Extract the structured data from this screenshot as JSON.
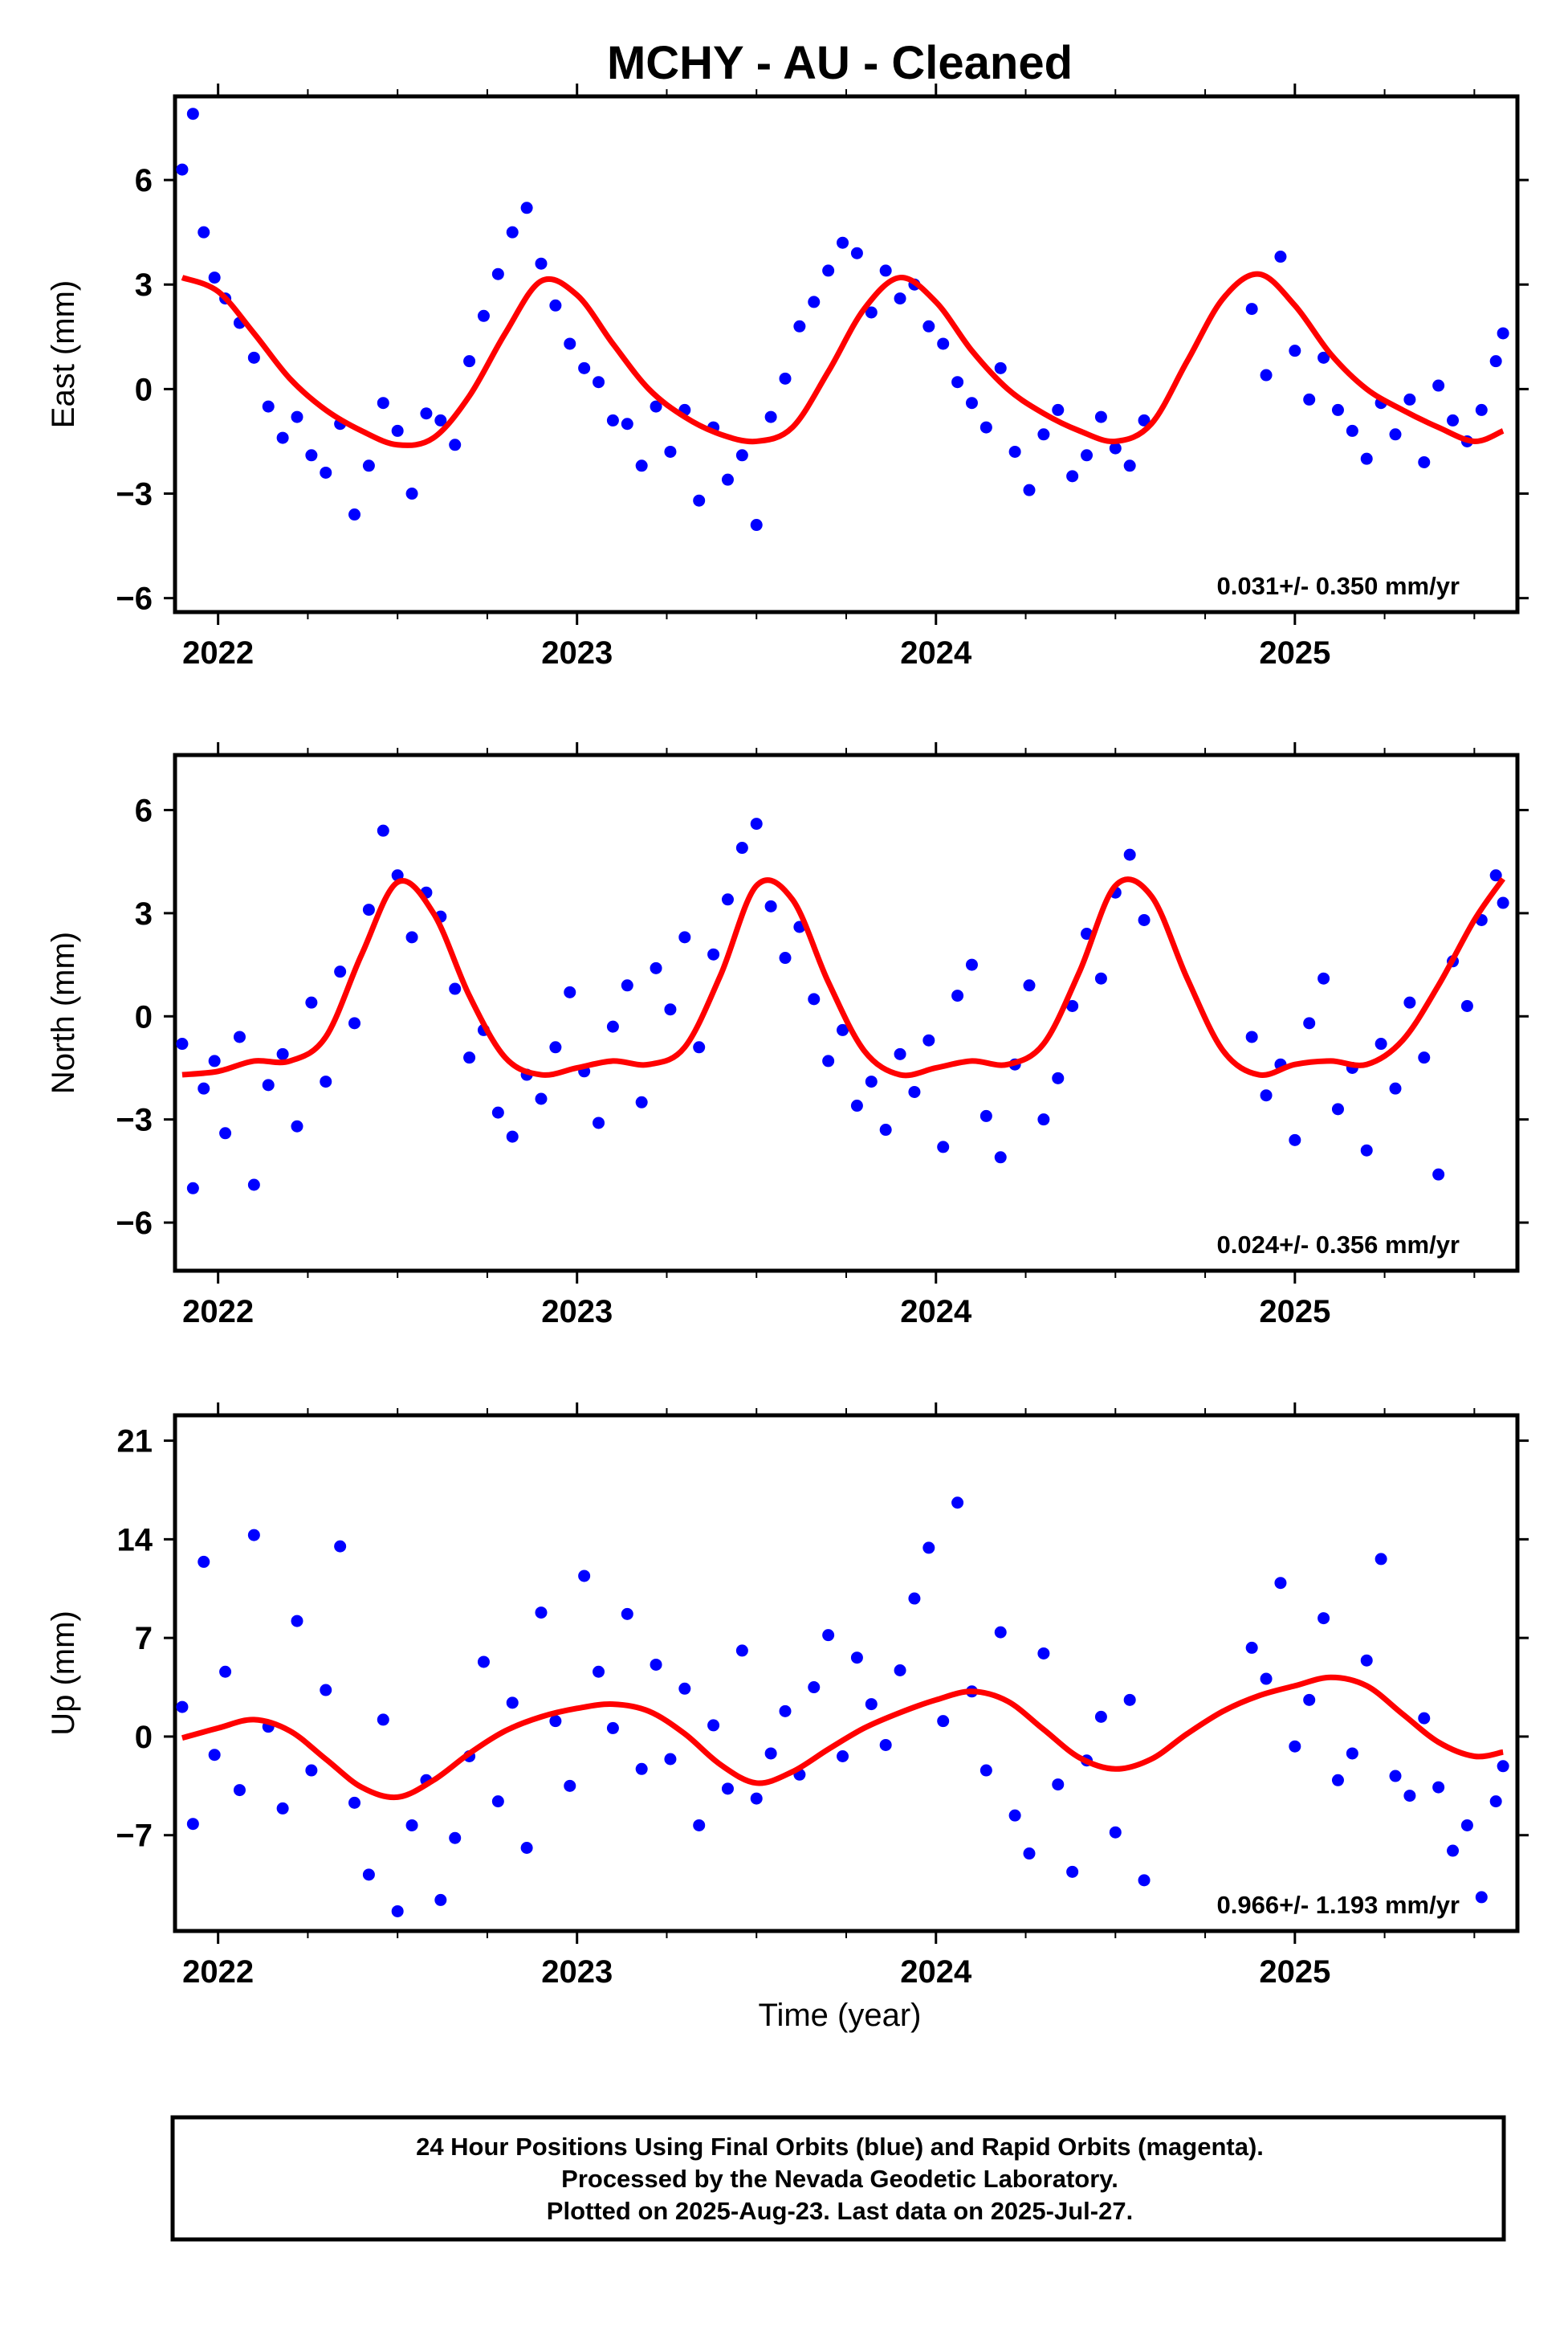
{
  "title": "MCHY  - AU - Cleaned",
  "x_axis_label": "Time (year)",
  "footer": {
    "line1": "24 Hour Positions Using Final Orbits (blue) and Rapid Orbits (magenta).",
    "line2": "Processed by the Nevada Geodetic Laboratory.",
    "line3": "Plotted on 2025-Aug-23. Last data on 2025-Jul-27."
  },
  "colors": {
    "points": "#0000ff",
    "model": "#ff0000",
    "frame": "#000000"
  },
  "chart_data": [
    {
      "type": "scatter",
      "name": "east",
      "ylabel": "East (mm)",
      "xlim": [
        2021.88,
        2025.62
      ],
      "ylim": [
        -6.4,
        8.4
      ],
      "yticks": [
        -6,
        -3,
        0,
        3,
        6
      ],
      "xticks": [
        2022,
        2023,
        2024,
        2025
      ],
      "rate_text": "0.031+/- 0.350 mm/yr",
      "series": [
        {
          "name": "",
          "kind": "points",
          "x": [
            2021.9,
            2021.93,
            2021.96,
            2021.99,
            2022.02,
            2022.06,
            2022.1,
            2022.14,
            2022.18,
            2022.22,
            2022.26,
            2022.3,
            2022.34,
            2022.38,
            2022.42,
            2022.46,
            2022.5,
            2022.54,
            2022.58,
            2022.62,
            2022.66,
            2022.7,
            2022.74,
            2022.78,
            2022.82,
            2022.86,
            2022.9,
            2022.94,
            2022.98,
            2023.02,
            2023.06,
            2023.1,
            2023.14,
            2023.18,
            2023.22,
            2023.26,
            2023.3,
            2023.34,
            2023.38,
            2023.42,
            2023.46,
            2023.5,
            2023.54,
            2023.58,
            2023.62,
            2023.66,
            2023.7,
            2023.74,
            2023.78,
            2023.82,
            2023.86,
            2023.9,
            2023.94,
            2023.98,
            2024.02,
            2024.06,
            2024.1,
            2024.14,
            2024.18,
            2024.22,
            2024.26,
            2024.3,
            2024.34,
            2024.38,
            2024.42,
            2024.46,
            2024.5,
            2024.54,
            2024.58,
            2024.88,
            2024.92,
            2024.96,
            2025.0,
            2025.04,
            2025.08,
            2025.12,
            2025.16,
            2025.2,
            2025.24,
            2025.28,
            2025.32,
            2025.36,
            2025.4,
            2025.44,
            2025.48,
            2025.52,
            2025.56,
            2025.58
          ],
          "y": [
            6.3,
            7.9,
            4.5,
            3.2,
            2.6,
            1.9,
            0.9,
            -0.5,
            -1.4,
            -0.8,
            -1.9,
            -2.4,
            -1.0,
            -3.6,
            -2.2,
            -0.4,
            -1.2,
            -3.0,
            -0.7,
            -0.9,
            -1.6,
            0.8,
            2.1,
            3.3,
            4.5,
            5.2,
            3.6,
            2.4,
            1.3,
            0.6,
            0.2,
            -0.9,
            -1.0,
            -2.2,
            -0.5,
            -1.8,
            -0.6,
            -3.2,
            -1.1,
            -2.6,
            -1.9,
            -3.9,
            -0.8,
            0.3,
            1.8,
            2.5,
            3.4,
            4.2,
            3.9,
            2.2,
            3.4,
            2.6,
            3.0,
            1.8,
            1.3,
            0.2,
            -0.4,
            -1.1,
            0.6,
            -1.8,
            -2.9,
            -1.3,
            -0.6,
            -2.5,
            -1.9,
            -0.8,
            -1.7,
            -2.2,
            -0.9,
            2.3,
            0.4,
            3.8,
            1.1,
            -0.3,
            0.9,
            -0.6,
            -1.2,
            -2.0,
            -0.4,
            -1.3,
            -0.3,
            -2.1,
            0.1,
            -0.9,
            -1.5,
            -0.6,
            0.8,
            1.6
          ]
        },
        {
          "name": "",
          "kind": "model",
          "x": [
            2021.9,
            2022.0,
            2022.1,
            2022.2,
            2022.3,
            2022.4,
            2022.5,
            2022.6,
            2022.7,
            2022.8,
            2022.9,
            2023.0,
            2023.1,
            2023.2,
            2023.3,
            2023.4,
            2023.5,
            2023.6,
            2023.7,
            2023.8,
            2023.9,
            2024.0,
            2024.1,
            2024.2,
            2024.3,
            2024.4,
            2024.5,
            2024.6,
            2024.7,
            2024.8,
            2024.9,
            2025.0,
            2025.1,
            2025.2,
            2025.3,
            2025.4,
            2025.5,
            2025.58
          ],
          "y": [
            3.2,
            2.8,
            1.6,
            0.3,
            -0.6,
            -1.2,
            -1.6,
            -1.4,
            -0.2,
            1.6,
            3.1,
            2.7,
            1.3,
            0.0,
            -0.8,
            -1.3,
            -1.5,
            -1.1,
            0.5,
            2.3,
            3.2,
            2.5,
            1.1,
            0.0,
            -0.7,
            -1.2,
            -1.5,
            -1.0,
            0.8,
            2.6,
            3.3,
            2.4,
            1.0,
            0.0,
            -0.6,
            -1.1,
            -1.5,
            -1.2
          ]
        }
      ]
    },
    {
      "type": "scatter",
      "name": "north",
      "ylabel": "North (mm)",
      "xlim": [
        2021.88,
        2025.62
      ],
      "ylim": [
        -7.4,
        7.6
      ],
      "yticks": [
        -6,
        -3,
        0,
        3,
        6
      ],
      "xticks": [
        2022,
        2023,
        2024,
        2025
      ],
      "rate_text": "0.024+/- 0.356 mm/yr",
      "series": [
        {
          "name": "",
          "kind": "points",
          "x": [
            2021.9,
            2021.93,
            2021.96,
            2021.99,
            2022.02,
            2022.06,
            2022.1,
            2022.14,
            2022.18,
            2022.22,
            2022.26,
            2022.3,
            2022.34,
            2022.38,
            2022.42,
            2022.46,
            2022.5,
            2022.54,
            2022.58,
            2022.62,
            2022.66,
            2022.7,
            2022.74,
            2022.78,
            2022.82,
            2022.86,
            2022.9,
            2022.94,
            2022.98,
            2023.02,
            2023.06,
            2023.1,
            2023.14,
            2023.18,
            2023.22,
            2023.26,
            2023.3,
            2023.34,
            2023.38,
            2023.42,
            2023.46,
            2023.5,
            2023.54,
            2023.58,
            2023.62,
            2023.66,
            2023.7,
            2023.74,
            2023.78,
            2023.82,
            2023.86,
            2023.9,
            2023.94,
            2023.98,
            2024.02,
            2024.06,
            2024.1,
            2024.14,
            2024.18,
            2024.22,
            2024.26,
            2024.3,
            2024.34,
            2024.38,
            2024.42,
            2024.46,
            2024.5,
            2024.54,
            2024.58,
            2024.88,
            2024.92,
            2024.96,
            2025.0,
            2025.04,
            2025.08,
            2025.12,
            2025.16,
            2025.2,
            2025.24,
            2025.28,
            2025.32,
            2025.36,
            2025.4,
            2025.44,
            2025.48,
            2025.52,
            2025.56,
            2025.58
          ],
          "y": [
            -0.8,
            -5.0,
            -2.1,
            -1.3,
            -3.4,
            -0.6,
            -4.9,
            -2.0,
            -1.1,
            -3.2,
            0.4,
            -1.9,
            1.3,
            -0.2,
            3.1,
            5.4,
            4.1,
            2.3,
            3.6,
            2.9,
            0.8,
            -1.2,
            -0.4,
            -2.8,
            -3.5,
            -1.7,
            -2.4,
            -0.9,
            0.7,
            -1.6,
            -3.1,
            -0.3,
            0.9,
            -2.5,
            1.4,
            0.2,
            2.3,
            -0.9,
            1.8,
            3.4,
            4.9,
            5.6,
            3.2,
            1.7,
            2.6,
            0.5,
            -1.3,
            -0.4,
            -2.6,
            -1.9,
            -3.3,
            -1.1,
            -2.2,
            -0.7,
            -3.8,
            0.6,
            1.5,
            -2.9,
            -4.1,
            -1.4,
            0.9,
            -3.0,
            -1.8,
            0.3,
            2.4,
            1.1,
            3.6,
            4.7,
            2.8,
            -0.6,
            -2.3,
            -1.4,
            -3.6,
            -0.2,
            1.1,
            -2.7,
            -1.5,
            -3.9,
            -0.8,
            -2.1,
            0.4,
            -1.2,
            -4.6,
            1.6,
            0.3,
            2.8,
            4.1,
            3.3
          ]
        },
        {
          "name": "",
          "kind": "model",
          "x": [
            2021.9,
            2022.0,
            2022.1,
            2022.2,
            2022.3,
            2022.4,
            2022.5,
            2022.6,
            2022.7,
            2022.8,
            2022.9,
            2023.0,
            2023.1,
            2023.2,
            2023.3,
            2023.4,
            2023.5,
            2023.6,
            2023.7,
            2023.8,
            2023.9,
            2024.0,
            2024.1,
            2024.2,
            2024.3,
            2024.4,
            2024.5,
            2024.6,
            2024.7,
            2024.8,
            2024.9,
            2025.0,
            2025.1,
            2025.2,
            2025.3,
            2025.4,
            2025.5,
            2025.58
          ],
          "y": [
            -1.7,
            -1.6,
            -1.3,
            -1.3,
            -0.6,
            1.8,
            3.9,
            3.0,
            0.6,
            -1.2,
            -1.7,
            -1.5,
            -1.3,
            -1.4,
            -0.9,
            1.2,
            3.8,
            3.4,
            1.0,
            -1.0,
            -1.7,
            -1.5,
            -1.3,
            -1.4,
            -0.8,
            1.3,
            3.8,
            3.5,
            1.1,
            -1.0,
            -1.7,
            -1.4,
            -1.3,
            -1.4,
            -0.7,
            0.9,
            2.8,
            4.0
          ]
        }
      ]
    },
    {
      "type": "scatter",
      "name": "up",
      "ylabel": "Up (mm)",
      "xlim": [
        2021.88,
        2025.62
      ],
      "ylim": [
        -13.8,
        22.8
      ],
      "yticks": [
        -7,
        0,
        7,
        14,
        21
      ],
      "xticks": [
        2022,
        2023,
        2024,
        2025
      ],
      "rate_text": "0.966+/- 1.193 mm/yr",
      "series": [
        {
          "name": "",
          "kind": "points",
          "x": [
            2021.9,
            2021.93,
            2021.96,
            2021.99,
            2022.02,
            2022.06,
            2022.1,
            2022.14,
            2022.18,
            2022.22,
            2022.26,
            2022.3,
            2022.34,
            2022.38,
            2022.42,
            2022.46,
            2022.5,
            2022.54,
            2022.58,
            2022.62,
            2022.66,
            2022.7,
            2022.74,
            2022.78,
            2022.82,
            2022.86,
            2022.9,
            2022.94,
            2022.98,
            2023.02,
            2023.06,
            2023.1,
            2023.14,
            2023.18,
            2023.22,
            2023.26,
            2023.3,
            2023.34,
            2023.38,
            2023.42,
            2023.46,
            2023.5,
            2023.54,
            2023.58,
            2023.62,
            2023.66,
            2023.7,
            2023.74,
            2023.78,
            2023.82,
            2023.86,
            2023.9,
            2023.94,
            2023.98,
            2024.02,
            2024.06,
            2024.1,
            2024.14,
            2024.18,
            2024.22,
            2024.26,
            2024.3,
            2024.34,
            2024.38,
            2024.42,
            2024.46,
            2024.5,
            2024.54,
            2024.58,
            2024.88,
            2024.92,
            2024.96,
            2025.0,
            2025.04,
            2025.08,
            2025.12,
            2025.16,
            2025.2,
            2025.24,
            2025.28,
            2025.32,
            2025.36,
            2025.4,
            2025.44,
            2025.48,
            2025.52,
            2025.56,
            2025.58
          ],
          "y": [
            2.1,
            -6.2,
            12.4,
            -1.3,
            4.6,
            -3.8,
            14.3,
            0.7,
            -5.1,
            8.2,
            -2.4,
            3.3,
            13.5,
            -4.7,
            -9.8,
            1.2,
            -12.4,
            -6.3,
            -3.1,
            -11.6,
            -7.2,
            -1.4,
            5.3,
            -4.6,
            2.4,
            -7.9,
            8.8,
            1.1,
            -3.5,
            11.4,
            4.6,
            0.6,
            8.7,
            -2.3,
            5.1,
            -1.6,
            3.4,
            -6.3,
            0.8,
            -3.7,
            6.1,
            -4.4,
            -1.2,
            1.8,
            -2.7,
            3.5,
            7.2,
            -1.4,
            5.6,
            2.3,
            -0.6,
            4.7,
            9.8,
            13.4,
            1.1,
            16.6,
            3.2,
            -2.4,
            7.4,
            -5.6,
            -8.3,
            5.9,
            -3.4,
            -9.6,
            -1.7,
            1.4,
            -6.8,
            2.6,
            -10.2,
            6.3,
            4.1,
            10.9,
            -0.7,
            2.6,
            8.4,
            -3.1,
            -1.2,
            5.4,
            12.6,
            -2.8,
            -4.2,
            1.3,
            -3.6,
            -8.1,
            -6.3,
            -11.4,
            -4.6,
            -2.1
          ]
        },
        {
          "name": "",
          "kind": "model",
          "x": [
            2021.9,
            2022.0,
            2022.1,
            2022.2,
            2022.3,
            2022.4,
            2022.5,
            2022.6,
            2022.7,
            2022.8,
            2022.9,
            2023.0,
            2023.1,
            2023.2,
            2023.3,
            2023.4,
            2023.5,
            2023.6,
            2023.7,
            2023.8,
            2023.9,
            2024.0,
            2024.1,
            2024.2,
            2024.3,
            2024.4,
            2024.5,
            2024.6,
            2024.7,
            2024.8,
            2024.9,
            2025.0,
            2025.1,
            2025.2,
            2025.3,
            2025.4,
            2025.5,
            2025.58
          ],
          "y": [
            -0.1,
            0.6,
            1.2,
            0.4,
            -1.6,
            -3.6,
            -4.3,
            -3.1,
            -1.2,
            0.4,
            1.4,
            2.0,
            2.3,
            1.8,
            0.2,
            -2.0,
            -3.3,
            -2.5,
            -0.9,
            0.6,
            1.7,
            2.6,
            3.2,
            2.5,
            0.5,
            -1.5,
            -2.3,
            -1.6,
            0.2,
            1.8,
            2.9,
            3.6,
            4.2,
            3.6,
            1.6,
            -0.4,
            -1.4,
            -1.1
          ]
        }
      ]
    }
  ]
}
